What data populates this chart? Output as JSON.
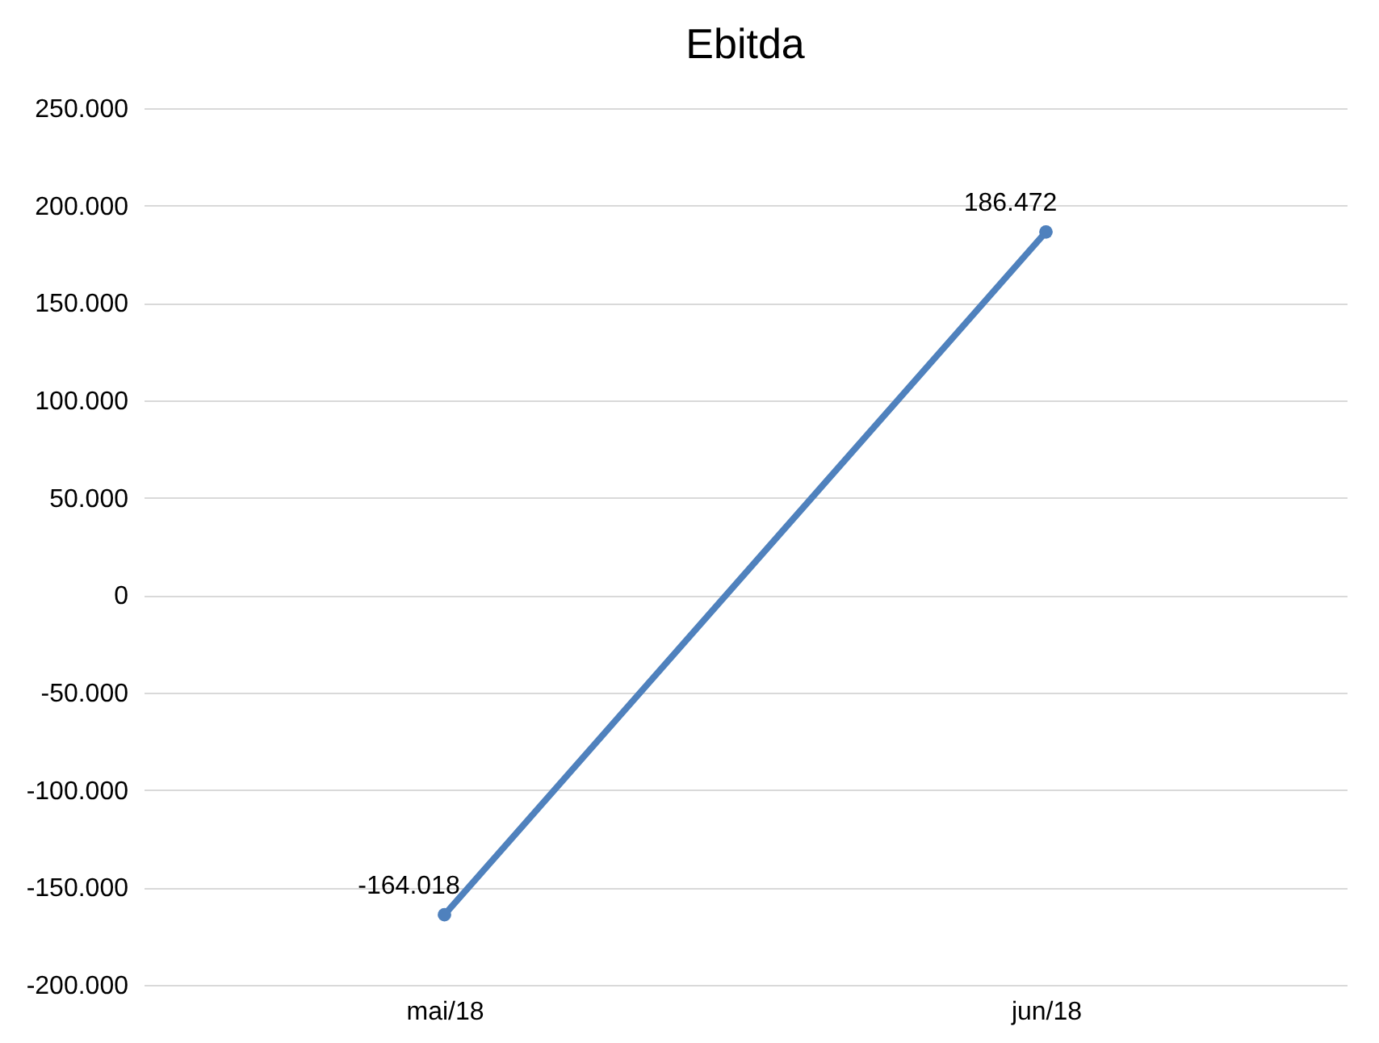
{
  "chart_data": {
    "type": "line",
    "title": "Ebitda",
    "categories": [
      "mai/18",
      "jun/18"
    ],
    "series": [
      {
        "color": "#4f81bd",
        "values": [
          -164018,
          186472
        ],
        "value_labels": [
          "-164.018",
          "186.472"
        ]
      }
    ],
    "ylim": [
      -200000,
      250000
    ],
    "yticks": [
      {
        "value": -200000,
        "label": "-200.000"
      },
      {
        "value": -150000,
        "label": "-150.000"
      },
      {
        "value": -100000,
        "label": "-100.000"
      },
      {
        "value": -50000,
        "label": "-50.000"
      },
      {
        "value": 0,
        "label": "0"
      },
      {
        "value": 50000,
        "label": "50.000"
      },
      {
        "value": 100000,
        "label": "100.000"
      },
      {
        "value": 150000,
        "label": "150.000"
      },
      {
        "value": 200000,
        "label": "200.000"
      },
      {
        "value": 250000,
        "label": "250.000"
      }
    ],
    "grid": "y",
    "marker": "circle",
    "line_style": "solid"
  }
}
